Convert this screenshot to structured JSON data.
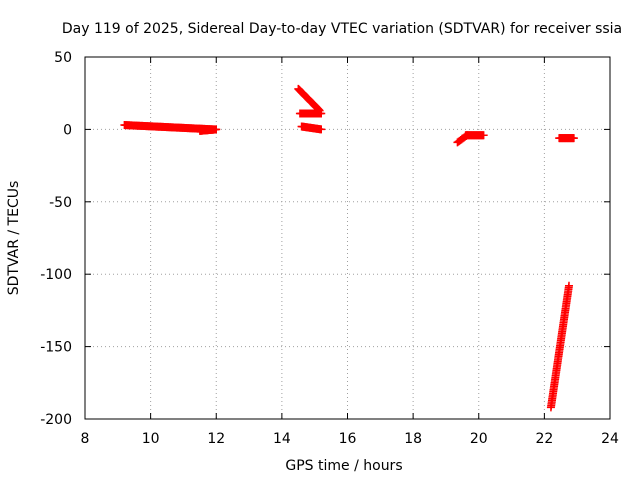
{
  "chart_data": {
    "type": "scatter",
    "title": "Day 119 of 2025, Sidereal Day-to-day VTEC variation (SDTVAR) for receiver ssia",
    "xlabel": "GPS time / hours",
    "ylabel": "SDTVAR / TECUs",
    "xlim": [
      8,
      24
    ],
    "ylim": [
      -200,
      50
    ],
    "x_ticks": [
      "8",
      "10",
      "12",
      "14",
      "16",
      "18",
      "20",
      "22",
      "24"
    ],
    "y_ticks": [
      "50",
      "0",
      "-50",
      "-100",
      "-150",
      "-200"
    ],
    "grid": true,
    "legend": "none",
    "marker": "plus",
    "color": "#ff0000",
    "segments": [
      {
        "x_start": 9.2,
        "x_end": 11.95,
        "y_start": 3,
        "y_end": 0,
        "count": 110
      },
      {
        "x_start": 11.5,
        "x_end": 12.0,
        "y_start": -1,
        "y_end": 0,
        "count": 30
      },
      {
        "x_start": 14.5,
        "x_end": 15.15,
        "y_start": 28,
        "y_end": 13,
        "count": 40
      },
      {
        "x_start": 14.55,
        "x_end": 15.2,
        "y_start": 11,
        "y_end": 11,
        "count": 30
      },
      {
        "x_start": 14.6,
        "x_end": 15.2,
        "y_start": 2,
        "y_end": 0,
        "count": 30
      },
      {
        "x_start": 19.35,
        "x_end": 19.65,
        "y_start": -9,
        "y_end": -4,
        "count": 10
      },
      {
        "x_start": 19.6,
        "x_end": 20.15,
        "y_start": -4,
        "y_end": -4,
        "count": 30
      },
      {
        "x_start": 22.45,
        "x_end": 22.9,
        "y_start": -6,
        "y_end": -6,
        "count": 25
      },
      {
        "x_start": 22.2,
        "x_end": 22.75,
        "y_start": -192,
        "y_end": -108,
        "count": 70
      }
    ]
  }
}
